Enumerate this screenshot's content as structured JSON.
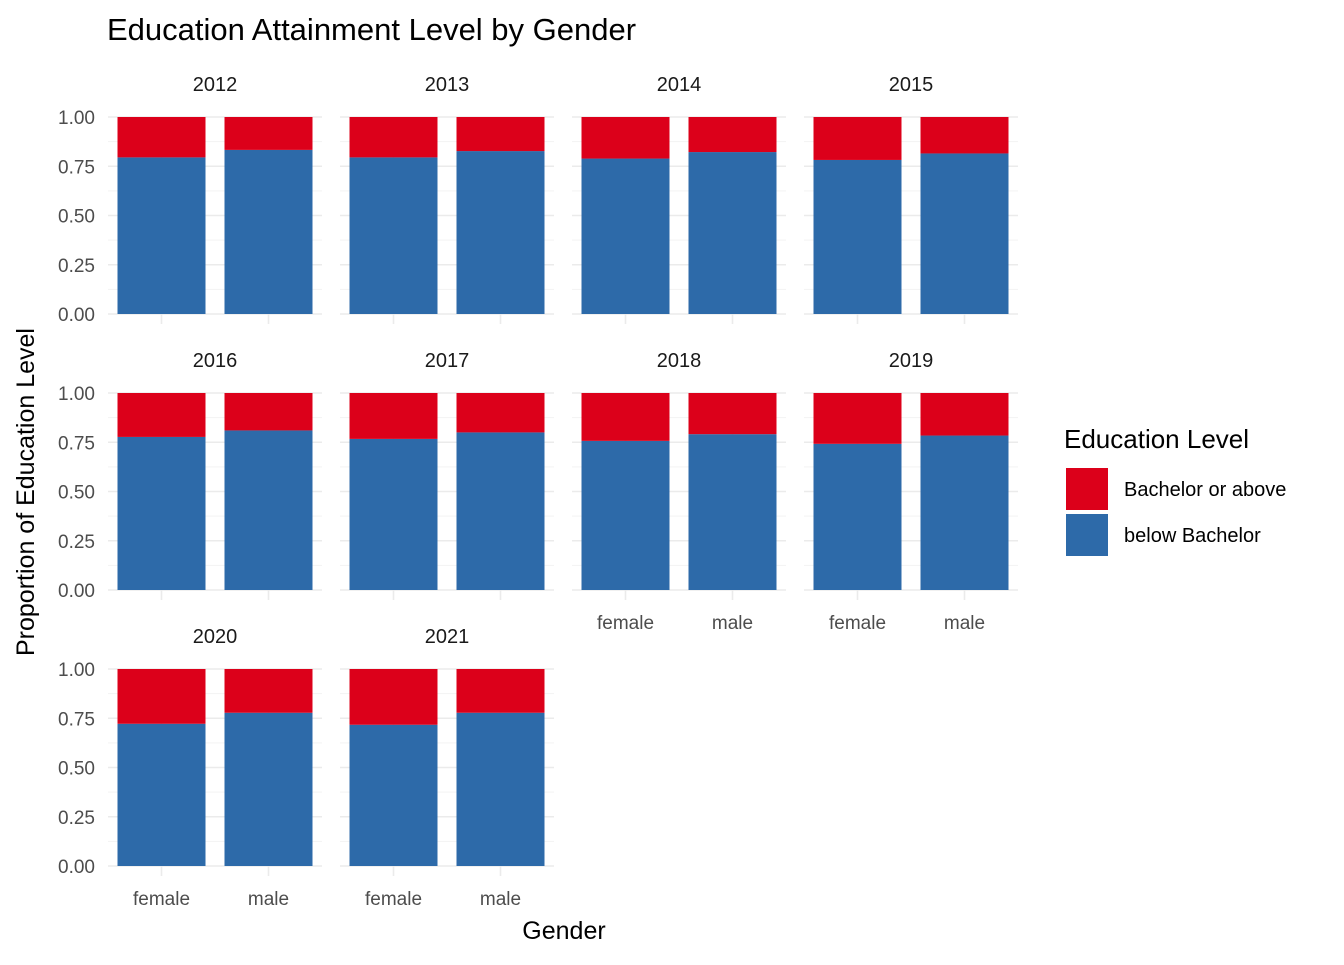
{
  "chart_data": {
    "type": "bar",
    "stacked": true,
    "position": "fill",
    "title": "Education Attainment Level by Gender",
    "xlabel": "Gender",
    "ylabel": "Proportion of Education Level",
    "ylim": [
      0,
      1
    ],
    "yticks": [
      "0.00",
      "0.25",
      "0.50",
      "0.75",
      "1.00"
    ],
    "categories": [
      "female",
      "male"
    ],
    "grid": true,
    "facet_cols": 4,
    "legend": {
      "title": "Education Level",
      "placement": "right",
      "entries": [
        {
          "name": "Bachelor or above",
          "color": "#DC001A"
        },
        {
          "name": "below Bachelor",
          "color": "#2D6AA9"
        }
      ]
    },
    "panels": [
      {
        "label": "2012",
        "below_bachelor": [
          0.795,
          0.833
        ]
      },
      {
        "label": "2013",
        "below_bachelor": [
          0.795,
          0.827
        ]
      },
      {
        "label": "2014",
        "below_bachelor": [
          0.789,
          0.822
        ]
      },
      {
        "label": "2015",
        "below_bachelor": [
          0.782,
          0.815
        ]
      },
      {
        "label": "2016",
        "below_bachelor": [
          0.777,
          0.81
        ]
      },
      {
        "label": "2017",
        "below_bachelor": [
          0.767,
          0.8
        ]
      },
      {
        "label": "2018",
        "below_bachelor": [
          0.757,
          0.791
        ]
      },
      {
        "label": "2019",
        "below_bachelor": [
          0.742,
          0.784
        ]
      },
      {
        "label": "2020",
        "below_bachelor": [
          0.722,
          0.778
        ]
      },
      {
        "label": "2021",
        "below_bachelor": [
          0.717,
          0.778
        ]
      }
    ]
  }
}
